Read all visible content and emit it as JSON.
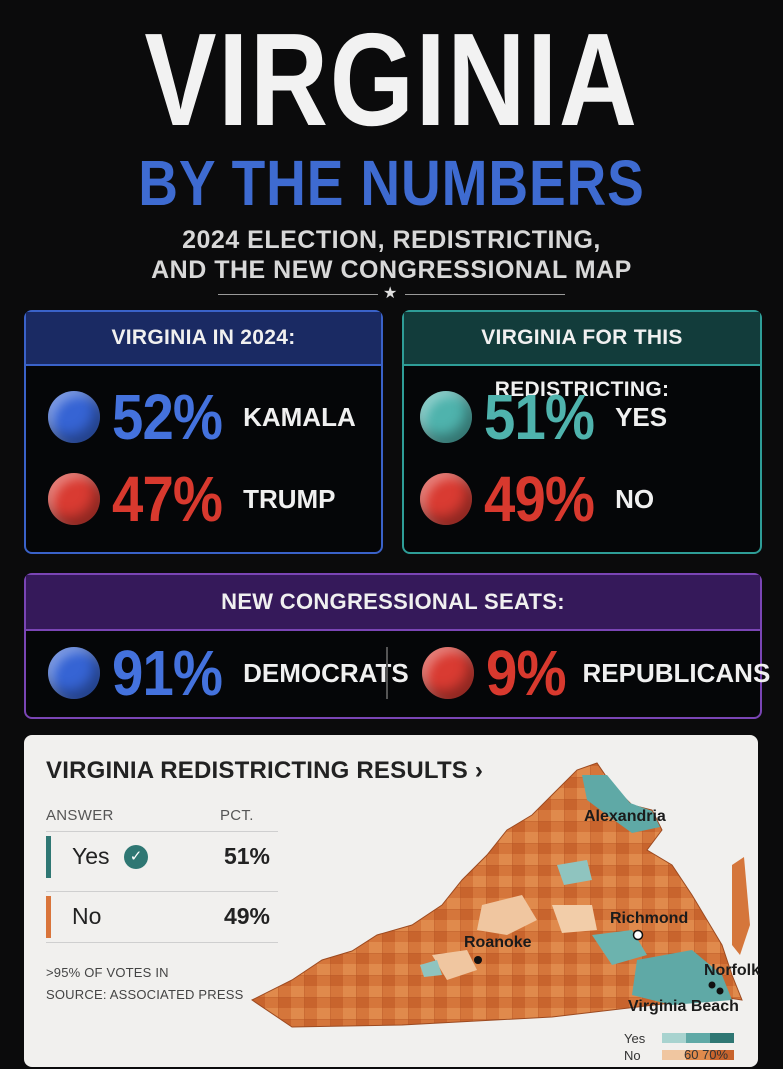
{
  "header": {
    "title": "VIRGINIA",
    "subtitle": "BY THE NUMBERS",
    "tagline_line1": "2024 ELECTION, REDISTRICTING,",
    "tagline_line2": "AND THE NEW CONGRESSIONAL MAP"
  },
  "election_2024": {
    "heading": "VIRGINIA IN 2024:",
    "rows": [
      {
        "pct": "52%",
        "label": "KAMALA"
      },
      {
        "pct": "47%",
        "label": "TRUMP"
      }
    ]
  },
  "redistricting": {
    "heading": "VIRGINIA FOR THIS REDISTRICTING:",
    "rows": [
      {
        "pct": "51%",
        "label": "YES"
      },
      {
        "pct": "49%",
        "label": "NO"
      }
    ]
  },
  "seats": {
    "heading": "NEW CONGRESSIONAL SEATS:",
    "left": {
      "pct": "91%",
      "label": "DEMOCRATS"
    },
    "right": {
      "pct": "9%",
      "label": "REPUBLICANS"
    }
  },
  "results": {
    "title": "VIRGINIA REDISTRICTING RESULTS ›",
    "col_answer": "ANSWER",
    "col_pct": "PCT.",
    "rows": [
      {
        "answer": "Yes",
        "pct": "51%"
      },
      {
        "answer": "No",
        "pct": "49%"
      }
    ],
    "note1": ">95% OF VOTES IN",
    "note2": "SOURCE: ASSOCIATED PRESS",
    "cities": {
      "alexandria": "Alexandria",
      "richmond": "Richmond",
      "roanoke": "Roanoke",
      "norfolk": "Norfolk",
      "virginia_beach": "Virginia Beach"
    },
    "legend": {
      "yes": "Yes",
      "no": "No",
      "scale": "60 70%"
    }
  },
  "colors": {
    "blue": "#3664d4",
    "red": "#d93b32",
    "teal": "#4fb3ad",
    "purple": "#7a45b5",
    "no_orange": "#d9743a"
  }
}
